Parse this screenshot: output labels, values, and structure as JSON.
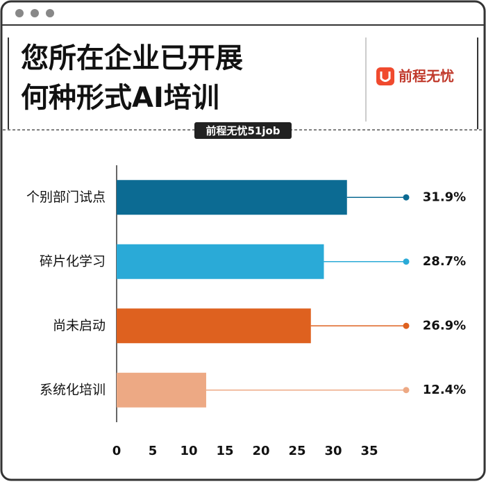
{
  "header": {
    "title_lines": [
      "您所在企业已开展",
      "何种形式AI培训"
    ],
    "brand": "前程无忧",
    "source_tag": "前程无忧51job"
  },
  "chart_data": {
    "type": "hbar",
    "categories": [
      "个别部门试点",
      "碎片化学习",
      "尚未启动",
      "系统化培训"
    ],
    "values": [
      31.9,
      28.7,
      26.9,
      12.4
    ],
    "value_labels": [
      "31.9%",
      "28.7%",
      "26.9%",
      "12.4%"
    ],
    "colors": [
      "#0c6b93",
      "#2aaad7",
      "#de611f",
      "#eda984"
    ],
    "xlim": [
      0,
      35
    ],
    "xticks": [
      0,
      5,
      10,
      15,
      20,
      25,
      30,
      35
    ]
  }
}
